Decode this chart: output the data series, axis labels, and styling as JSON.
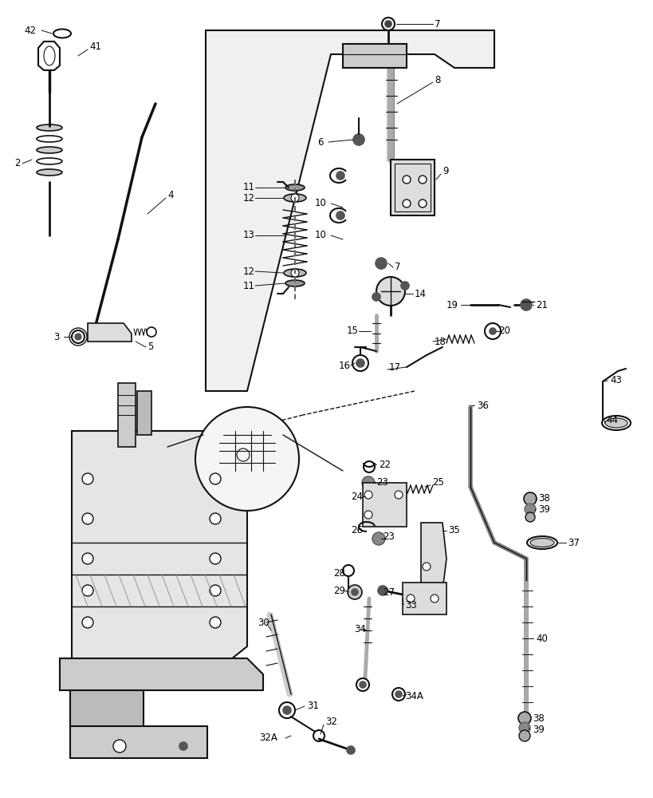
{
  "background_color": "#ffffff",
  "line_color": "#111111",
  "fig_width": 8.2,
  "fig_height": 10.0,
  "dpi": 100
}
